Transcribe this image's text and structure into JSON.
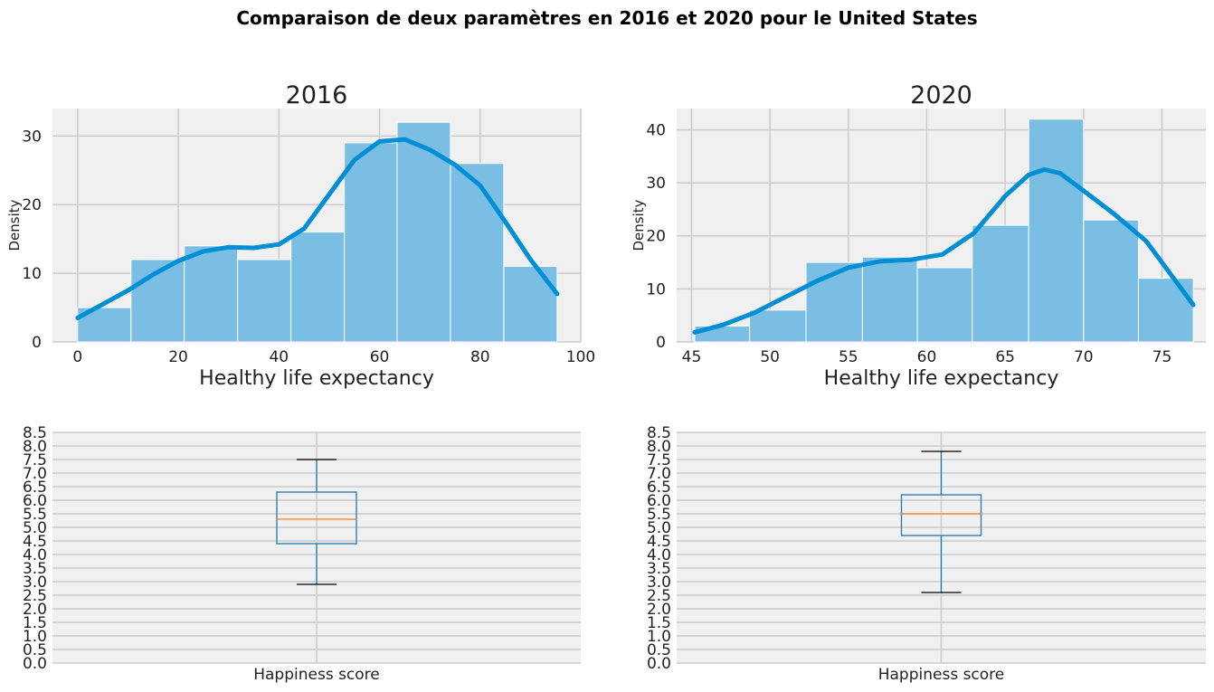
{
  "suptitle": "Comparaison de deux paramètres en 2016 et 2020 pour le United States",
  "colors": {
    "panel_bg": "#f0f0f0",
    "grid": "#cbcbcb",
    "hist_fill": "#7abfe3",
    "kde_line": "#008fd5",
    "box_line": "#1f77b4",
    "median_line": "#ff7f0e",
    "whisker_cap": "#000000"
  },
  "chart_data": [
    {
      "id": "hist2016",
      "type": "bar",
      "title": "2016",
      "xlabel": "Healthy life expectancy",
      "ylabel": "Density",
      "xlim": [
        -5,
        100
      ],
      "ylim": [
        0,
        34
      ],
      "xticks": [
        0,
        20,
        40,
        60,
        80,
        100
      ],
      "yticks": [
        0,
        10,
        20,
        30
      ],
      "bins": [
        {
          "x0": 0,
          "x1": 10.6,
          "value": 5
        },
        {
          "x0": 10.6,
          "x1": 21.2,
          "value": 12
        },
        {
          "x0": 21.2,
          "x1": 31.8,
          "value": 14
        },
        {
          "x0": 31.8,
          "x1": 42.4,
          "value": 12
        },
        {
          "x0": 42.4,
          "x1": 53.0,
          "value": 16
        },
        {
          "x0": 53.0,
          "x1": 63.5,
          "value": 29
        },
        {
          "x0": 63.5,
          "x1": 74.1,
          "value": 32
        },
        {
          "x0": 74.1,
          "x1": 84.7,
          "value": 26
        },
        {
          "x0": 84.7,
          "x1": 95.3,
          "value": 11
        }
      ],
      "kde": {
        "x": [
          0,
          5,
          10,
          15,
          20,
          25,
          30,
          35,
          40,
          45,
          50,
          55,
          60,
          65,
          70,
          75,
          80,
          85,
          90,
          95.3
        ],
        "y": [
          3.5,
          5.5,
          7.5,
          9.8,
          11.8,
          13.2,
          13.8,
          13.7,
          14.2,
          16.5,
          21.5,
          26.5,
          29.2,
          29.5,
          28,
          25.8,
          22.8,
          17.5,
          12,
          7
        ]
      }
    },
    {
      "id": "hist2020",
      "type": "bar",
      "title": "2020",
      "xlabel": "Healthy life expectancy",
      "ylabel": "Density",
      "xlim": [
        44.05,
        77.8
      ],
      "ylim": [
        0,
        44
      ],
      "xticks": [
        45,
        50,
        55,
        60,
        65,
        70,
        75
      ],
      "yticks": [
        0,
        10,
        20,
        30,
        40
      ],
      "bins": [
        {
          "x0": 45.2,
          "x1": 48.7,
          "value": 3
        },
        {
          "x0": 48.7,
          "x1": 52.3,
          "value": 6
        },
        {
          "x0": 52.3,
          "x1": 55.9,
          "value": 15
        },
        {
          "x0": 55.9,
          "x1": 59.4,
          "value": 16
        },
        {
          "x0": 59.4,
          "x1": 62.9,
          "value": 14
        },
        {
          "x0": 62.9,
          "x1": 66.5,
          "value": 22
        },
        {
          "x0": 66.5,
          "x1": 70.0,
          "value": 42
        },
        {
          "x0": 70.0,
          "x1": 73.5,
          "value": 23
        },
        {
          "x0": 73.5,
          "x1": 77.0,
          "value": 12
        }
      ],
      "kde": {
        "x": [
          45.2,
          47,
          49,
          51,
          53,
          55,
          57,
          59,
          61,
          63,
          65,
          66.5,
          67.5,
          68.5,
          70,
          72,
          74,
          75.5,
          77
        ],
        "y": [
          1.8,
          3.2,
          5.5,
          8.5,
          11.5,
          14,
          15.2,
          15.5,
          16.5,
          20.5,
          27.5,
          31.5,
          32.5,
          31.8,
          28.5,
          24,
          19,
          13,
          7
        ]
      }
    },
    {
      "id": "box2016",
      "type": "box",
      "xlabel": "Happiness score",
      "ylim": [
        0,
        8.5
      ],
      "yticks": [
        0.0,
        0.5,
        1.0,
        1.5,
        2.0,
        2.5,
        3.0,
        3.5,
        4.0,
        4.5,
        5.0,
        5.5,
        6.0,
        6.5,
        7.0,
        7.5,
        8.0,
        8.5
      ],
      "box": {
        "whisker_low": 2.9,
        "q1": 4.4,
        "median": 5.3,
        "q3": 6.3,
        "whisker_high": 7.5
      }
    },
    {
      "id": "box2020",
      "type": "box",
      "xlabel": "Happiness score",
      "ylim": [
        0,
        8.5
      ],
      "yticks": [
        0.0,
        0.5,
        1.0,
        1.5,
        2.0,
        2.5,
        3.0,
        3.5,
        4.0,
        4.5,
        5.0,
        5.5,
        6.0,
        6.5,
        7.0,
        7.5,
        8.0,
        8.5
      ],
      "box": {
        "whisker_low": 2.6,
        "q1": 4.7,
        "median": 5.5,
        "q3": 6.2,
        "whisker_high": 7.8
      }
    }
  ]
}
